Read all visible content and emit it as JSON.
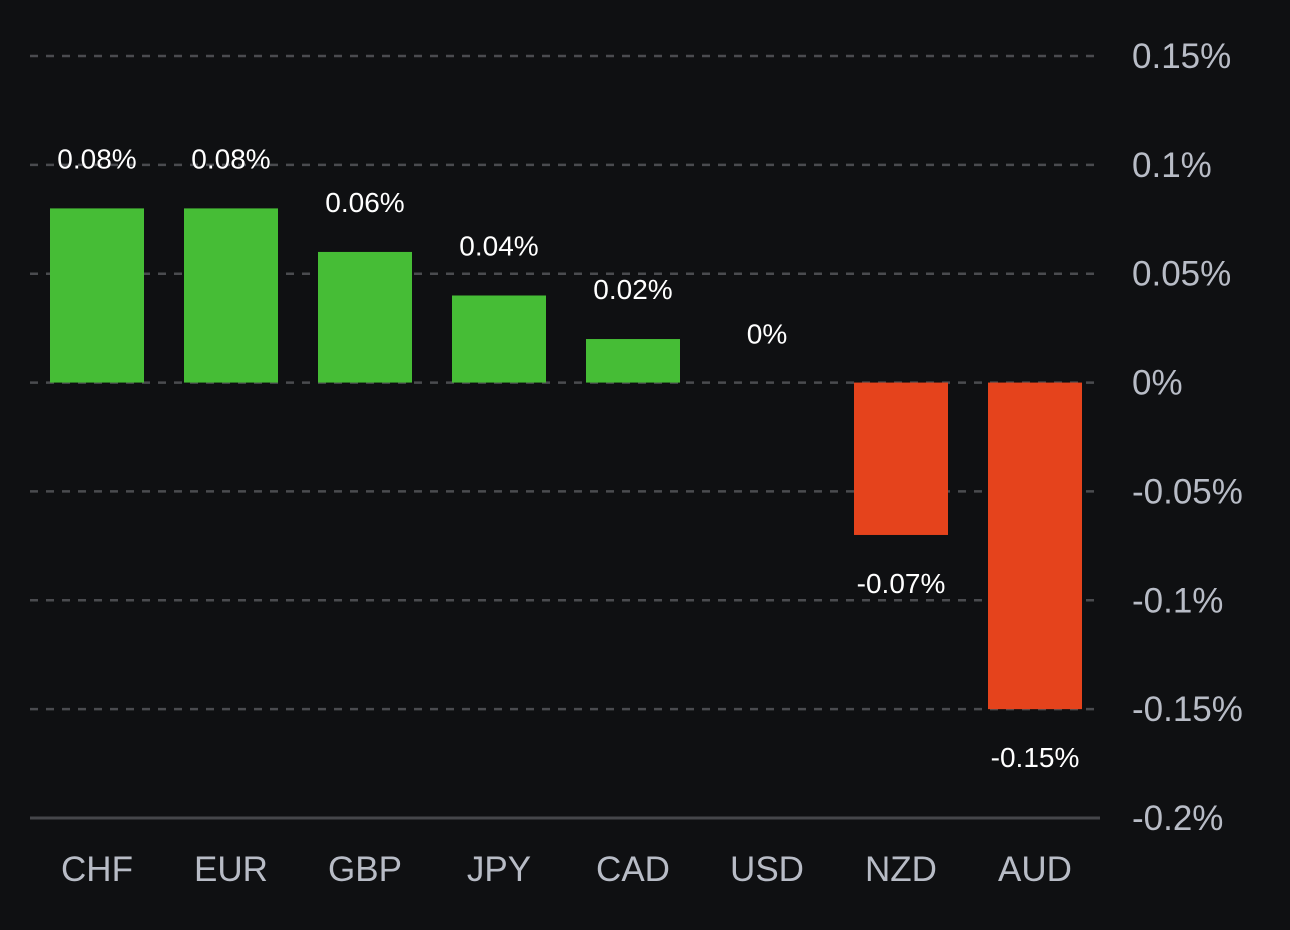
{
  "chart_data": {
    "type": "bar",
    "title": "",
    "xlabel": "",
    "ylabel": "",
    "categories": [
      "CHF",
      "EUR",
      "GBP",
      "JPY",
      "CAD",
      "USD",
      "NZD",
      "AUD"
    ],
    "values": [
      0.08,
      0.08,
      0.06,
      0.04,
      0.02,
      0,
      -0.07,
      -0.15
    ],
    "value_labels": [
      "0.08%",
      "0.08%",
      "0.06%",
      "0.04%",
      "0.02%",
      "0%",
      "-0.07%",
      "-0.15%"
    ],
    "unit": "%",
    "ylim": [
      -0.2,
      0.15
    ],
    "y_ticks": [
      0.15,
      0.1,
      0.05,
      0,
      -0.05,
      -0.1,
      -0.15,
      -0.2
    ],
    "y_tick_labels": [
      "0.15%",
      "0.1%",
      "0.05%",
      "0%",
      "-0.05%",
      "-0.1%",
      "-0.15%",
      "-0.2%"
    ],
    "y_axis_position": "right",
    "grid": true,
    "grid_style": "dashed",
    "legend": null,
    "colors": {
      "positive": "#46bd36",
      "negative": "#e5431c",
      "background": "#0f1012",
      "grid": "#4a4b4f",
      "tick_label": "#b8bcc6",
      "data_label": "#ffffff"
    }
  }
}
